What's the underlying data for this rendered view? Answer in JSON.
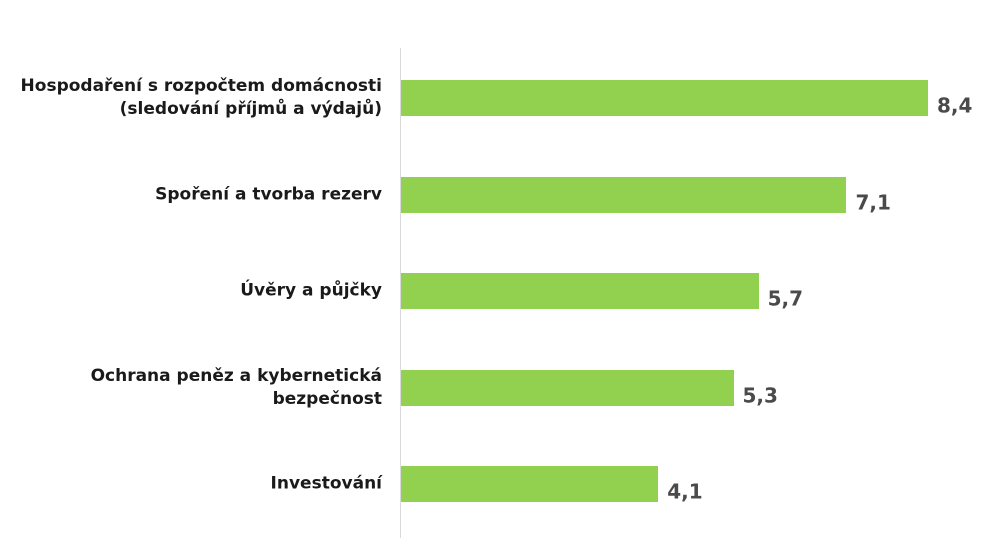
{
  "chart_data": {
    "type": "bar",
    "orientation": "horizontal",
    "categories": [
      "Hospodaření s rozpočtem domácnosti (sledování příjmů a výdajů)",
      "Spoření a tvorba rezerv",
      "Úvěry a půjčky",
      "Ochrana peněz a kybernetická bezpečnost",
      "Investování"
    ],
    "category_lines": [
      [
        "Hospodaření s rozpočtem domácnosti",
        "(sledování příjmů a výdajů)"
      ],
      [
        "Spoření a tvorba rezerv"
      ],
      [
        "Úvěry a půjčky"
      ],
      [
        "Ochrana peněz a kybernetická",
        "bezpečnost"
      ],
      [
        "Investování"
      ]
    ],
    "values": [
      8.4,
      7.1,
      5.7,
      5.3,
      4.1
    ],
    "value_labels": [
      "8,4",
      "7,1",
      "5,7",
      "5,3",
      "4,1"
    ],
    "xlim": [
      0,
      8.4
    ],
    "bar_color": "#92d050",
    "grid": false,
    "legend": "none"
  }
}
